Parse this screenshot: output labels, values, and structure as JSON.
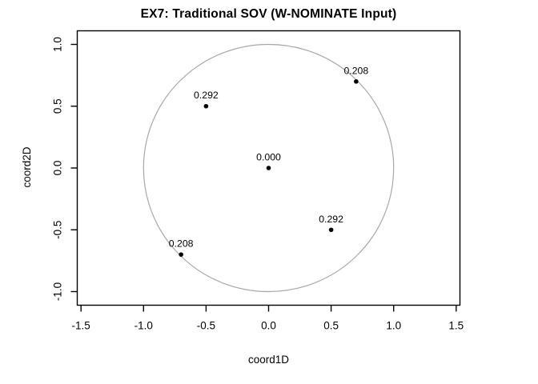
{
  "chart_data": {
    "type": "scatter",
    "title": "EX7: Traditional SOV (W-NOMINATE Input)",
    "xlabel": "coord1D",
    "ylabel": "coord2D",
    "xlim": [
      -1.53,
      1.53
    ],
    "ylim": [
      -1.11,
      1.11
    ],
    "grid": false,
    "legend_position": "none",
    "xticks": [
      {
        "v": -1.5,
        "label": "-1.5"
      },
      {
        "v": -1.0,
        "label": "-1.0"
      },
      {
        "v": -0.5,
        "label": "-0.5"
      },
      {
        "v": 0.0,
        "label": "0.0"
      },
      {
        "v": 0.5,
        "label": "0.5"
      },
      {
        "v": 1.0,
        "label": "1.0"
      },
      {
        "v": 1.5,
        "label": "1.5"
      }
    ],
    "yticks": [
      {
        "v": -1.0,
        "label": "-1.0"
      },
      {
        "v": -0.5,
        "label": "-0.5"
      },
      {
        "v": 0.0,
        "label": "0.0"
      },
      {
        "v": 0.5,
        "label": "0.5"
      },
      {
        "v": 1.0,
        "label": "1.0"
      }
    ],
    "unit_circle": {
      "cx": 0,
      "cy": 0,
      "r": 1
    },
    "points": [
      {
        "x": 0.7,
        "y": 0.7,
        "label": "0.208"
      },
      {
        "x": -0.5,
        "y": 0.5,
        "label": "0.292"
      },
      {
        "x": 0.0,
        "y": 0.0,
        "label": "0.000"
      },
      {
        "x": 0.5,
        "y": -0.5,
        "label": "0.292"
      },
      {
        "x": -0.7,
        "y": -0.7,
        "label": "0.208"
      }
    ],
    "colors": {
      "background": "#ffffff",
      "axis": "#000000",
      "text": "#000000",
      "point": "#000000",
      "circle": "#a8a8a8"
    }
  }
}
